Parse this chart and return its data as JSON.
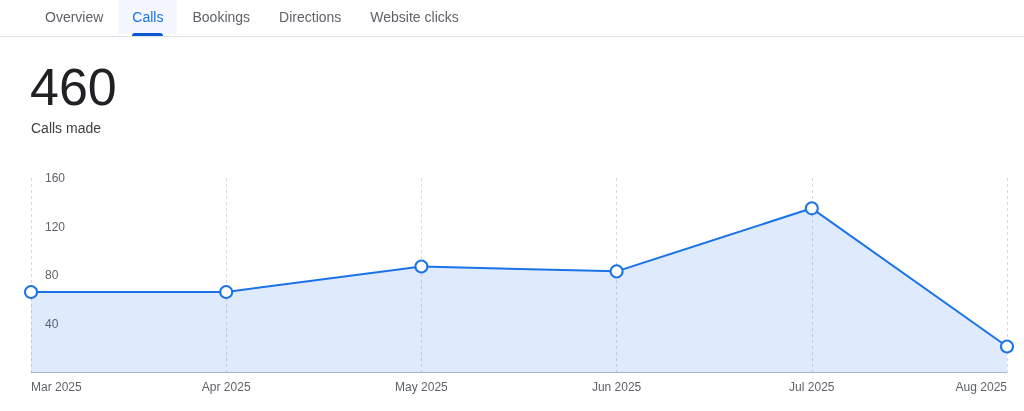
{
  "chart_data": {
    "type": "area",
    "title": "460",
    "subtitle": "Calls made",
    "annotations": [
      "Overview",
      "Calls",
      "Bookings",
      "Directions",
      "Website clicks"
    ],
    "categories": [
      "Mar 2025",
      "Apr 2025",
      "May 2025",
      "Jun 2025",
      "Jul 2025",
      "Aug 2025"
    ],
    "series": [
      {
        "color": "#1a73e8",
        "values": [
          66,
          66,
          87,
          83,
          135,
          21
        ]
      }
    ],
    "ylim": [
      0,
      160
    ],
    "yticks": [
      40,
      80,
      120,
      160
    ],
    "grid": "x",
    "marker": "circle",
    "line_style": "solid"
  }
}
